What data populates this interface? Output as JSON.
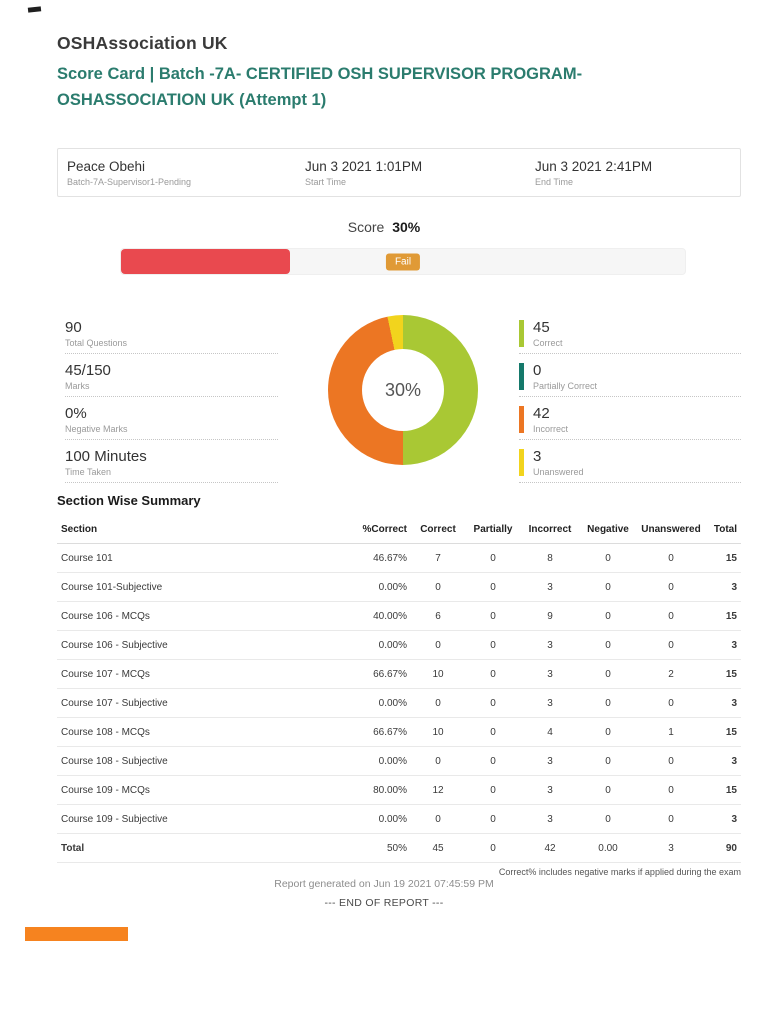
{
  "header": {
    "org_name": "OSHAssociation UK",
    "report_title": "Score Card  |  Batch -7A- CERTIFIED OSH SUPERVISOR PROGRAM-OSHASSOCIATION UK (Attempt 1)"
  },
  "candidate": {
    "name": "Peace Obehi",
    "batch": "Batch-7A-Supervisor1-Pending",
    "start_time": "Jun 3 2021 1:01PM",
    "start_time_label": "Start Time",
    "end_time": "Jun 3 2021 2:41PM",
    "end_time_label": "End Time"
  },
  "score": {
    "label": "Score",
    "value": "30%",
    "percent": 30,
    "status": "Fail",
    "bar_color": "#e9494f",
    "badge_color": "#e09a36"
  },
  "stats": [
    {
      "value": "90",
      "label": "Total Questions"
    },
    {
      "value": "45/150",
      "label": "Marks"
    },
    {
      "value": "0%",
      "label": "Negative Marks"
    },
    {
      "value": "100 Minutes",
      "label": "Time Taken"
    }
  ],
  "legend": [
    {
      "value": "45",
      "label": "Correct",
      "color": "#a9c834"
    },
    {
      "value": "0",
      "label": "Partially Correct",
      "color": "#15796b"
    },
    {
      "value": "42",
      "label": "Incorrect",
      "color": "#ec7623"
    },
    {
      "value": "3",
      "label": "Unanswered",
      "color": "#f2d41d"
    }
  ],
  "chart_data": {
    "type": "pie",
    "title": "Score 30%",
    "center_label": "30%",
    "categories": [
      "Correct",
      "Partially Correct",
      "Incorrect",
      "Unanswered"
    ],
    "values": [
      45,
      0,
      42,
      3
    ],
    "colors": [
      "#a9c834",
      "#15796b",
      "#ec7623",
      "#f2d41d"
    ],
    "total": 90
  },
  "section_summary": {
    "title": "Section Wise Summary",
    "columns": [
      "Section",
      "%Correct",
      "Correct",
      "Partially",
      "Incorrect",
      "Negative",
      "Unanswered",
      "Total"
    ],
    "rows": [
      [
        "Course 101",
        "46.67%",
        "7",
        "0",
        "8",
        "0",
        "0",
        "15"
      ],
      [
        "Course 101-Subjective",
        "0.00%",
        "0",
        "0",
        "3",
        "0",
        "0",
        "3"
      ],
      [
        "Course 106 - MCQs",
        "40.00%",
        "6",
        "0",
        "9",
        "0",
        "0",
        "15"
      ],
      [
        "Course 106 - Subjective",
        "0.00%",
        "0",
        "0",
        "3",
        "0",
        "0",
        "3"
      ],
      [
        "Course 107 - MCQs",
        "66.67%",
        "10",
        "0",
        "3",
        "0",
        "2",
        "15"
      ],
      [
        "Course 107 - Subjective",
        "0.00%",
        "0",
        "0",
        "3",
        "0",
        "0",
        "3"
      ],
      [
        "Course 108 - MCQs",
        "66.67%",
        "10",
        "0",
        "4",
        "0",
        "1",
        "15"
      ],
      [
        "Course 108 - Subjective",
        "0.00%",
        "0",
        "0",
        "3",
        "0",
        "0",
        "3"
      ],
      [
        "Course 109 - MCQs",
        "80.00%",
        "12",
        "0",
        "3",
        "0",
        "0",
        "15"
      ],
      [
        "Course 109 - Subjective",
        "0.00%",
        "0",
        "0",
        "3",
        "0",
        "0",
        "3"
      ],
      [
        "Total",
        "50%",
        "45",
        "0",
        "42",
        "0.00",
        "3",
        "90"
      ]
    ],
    "footnote": "Correct% includes negative marks if applied during the exam"
  },
  "footer": {
    "generated": "Report generated on Jun 19 2021 07:45:59 PM",
    "end": "--- END OF REPORT ---",
    "brand_bar_color": "#f6831f"
  }
}
